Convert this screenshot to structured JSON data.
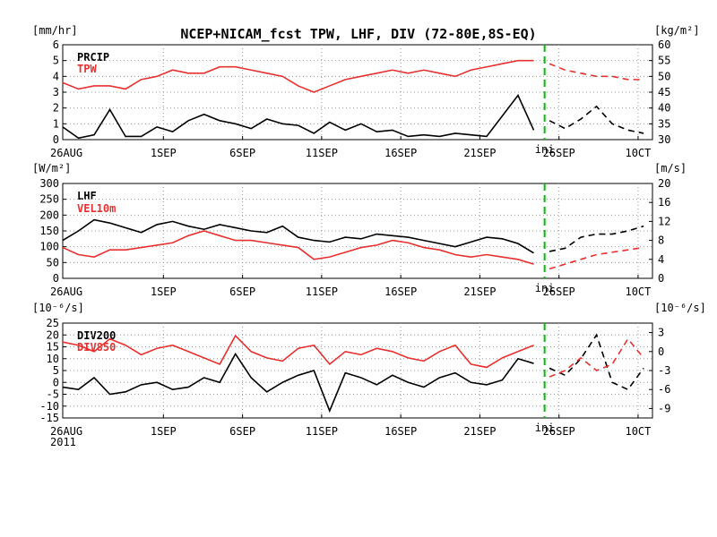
{
  "title": "NCEP+NICAM_fcst TPW, LHF, DIV (72-80E,8S-EQ)",
  "colors": {
    "black": "#000000",
    "red": "#e83030",
    "init_line": "#00c000",
    "grid": "#999999"
  },
  "x_tick_labels": [
    "26AUG",
    "1SEP",
    "6SEP",
    "11SEP",
    "16SEP",
    "21SEP",
    "26SEP",
    "10CT"
  ],
  "x_year_label": "2011",
  "init_label": "ini",
  "chart_data": [
    {
      "id": "panel-1",
      "type": "line",
      "left_unit": "[mm/hr]",
      "right_unit": "[kg/m²]",
      "y_left_ticks": [
        "0",
        "1",
        "2",
        "3",
        "4",
        "5",
        "6"
      ],
      "y_right_ticks": [
        "30",
        "35",
        "40",
        "45",
        "50",
        "55",
        "60"
      ],
      "ylim_left": [
        0,
        6
      ],
      "ylim_right": [
        30,
        60
      ],
      "x": [
        "26AUG",
        "27AUG",
        "28AUG",
        "29AUG",
        "30AUG",
        "31AUG",
        "1SEP",
        "2SEP",
        "3SEP",
        "4SEP",
        "5SEP",
        "6SEP",
        "7SEP",
        "8SEP",
        "9SEP",
        "10SEP",
        "11SEP",
        "12SEP",
        "13SEP",
        "14SEP",
        "15SEP",
        "16SEP",
        "17SEP",
        "18SEP",
        "19SEP",
        "20SEP",
        "21SEP",
        "22SEP",
        "23SEP",
        "24SEP",
        "25SEP",
        "26SEP",
        "27SEP",
        "28SEP",
        "29SEP",
        "30SEP",
        "1OCT",
        "2OCT"
      ],
      "series": [
        {
          "name": "PRCIP",
          "axis": "left",
          "color": "#000000",
          "values": [
            0.8,
            0.1,
            0.3,
            1.9,
            0.2,
            0.2,
            0.8,
            0.5,
            1.2,
            1.6,
            1.2,
            1.0,
            0.7,
            1.3,
            1.0,
            0.9,
            0.4,
            1.1,
            0.6,
            1.0,
            0.5,
            0.6,
            0.2,
            0.3,
            0.2,
            0.4,
            0.3,
            0.2,
            1.5,
            2.8,
            0.6,
            1.2,
            0.7,
            1.3,
            2.1,
            1.0,
            0.6,
            0.4
          ]
        },
        {
          "name": "TPW",
          "axis": "right",
          "color": "#e83030",
          "values": [
            48,
            46,
            47,
            47,
            46,
            49,
            50,
            52,
            51,
            51,
            53,
            53,
            52,
            51,
            50,
            47,
            45,
            47,
            49,
            50,
            51,
            52,
            51,
            52,
            51,
            50,
            52,
            53,
            54,
            55,
            55,
            54,
            52,
            51,
            50,
            50,
            49,
            49
          ]
        }
      ]
    },
    {
      "id": "panel-2",
      "type": "line",
      "left_unit": "[W/m²]",
      "right_unit": "[m/s]",
      "y_left_ticks": [
        "0",
        "50",
        "100",
        "150",
        "200",
        "250",
        "300"
      ],
      "y_right_ticks": [
        "0",
        "4",
        "8",
        "12",
        "16",
        "20"
      ],
      "ylim_left": [
        0,
        300
      ],
      "ylim_right": [
        0,
        20
      ],
      "x": [
        "26AUG",
        "27AUG",
        "28AUG",
        "29AUG",
        "30AUG",
        "31AUG",
        "1SEP",
        "2SEP",
        "3SEP",
        "4SEP",
        "5SEP",
        "6SEP",
        "7SEP",
        "8SEP",
        "9SEP",
        "10SEP",
        "11SEP",
        "12SEP",
        "13SEP",
        "14SEP",
        "15SEP",
        "16SEP",
        "17SEP",
        "18SEP",
        "19SEP",
        "20SEP",
        "21SEP",
        "22SEP",
        "23SEP",
        "24SEP",
        "25SEP",
        "26SEP",
        "27SEP",
        "28SEP",
        "29SEP",
        "30SEP",
        "1OCT",
        "2OCT"
      ],
      "series": [
        {
          "name": "LHF",
          "axis": "left",
          "color": "#000000",
          "values": [
            120,
            150,
            185,
            175,
            160,
            145,
            170,
            180,
            165,
            155,
            170,
            160,
            150,
            145,
            165,
            130,
            120,
            115,
            130,
            125,
            140,
            135,
            130,
            120,
            110,
            100,
            115,
            130,
            125,
            110,
            80,
            85,
            95,
            130,
            140,
            140,
            150,
            165
          ]
        },
        {
          "name": "VEL10m",
          "axis": "right",
          "color": "#e83030",
          "values": [
            6.5,
            5.0,
            4.5,
            6.0,
            6.0,
            6.5,
            7.0,
            7.5,
            9.0,
            10.0,
            9.0,
            8.0,
            8.0,
            7.5,
            7.0,
            6.5,
            4.0,
            4.5,
            5.5,
            6.5,
            7.0,
            8.0,
            7.5,
            6.5,
            6.0,
            5.0,
            4.5,
            5.0,
            4.5,
            4.0,
            3.0,
            2.0,
            3.0,
            4.0,
            5.0,
            5.5,
            6.0,
            6.5
          ]
        }
      ]
    },
    {
      "id": "panel-3",
      "type": "line",
      "left_unit": "[10⁻⁶/s]",
      "right_unit": "[10⁻⁶/s]",
      "y_left_ticks": [
        "-15",
        "-10",
        "-5",
        "0",
        "5",
        "10",
        "15",
        "20",
        "25"
      ],
      "y_right_ticks": [
        "-9",
        "-6",
        "-3",
        "0",
        "3"
      ],
      "ylim_left": [
        -15,
        25
      ],
      "ylim_right": [
        -10.5,
        4.5
      ],
      "x": [
        "26AUG",
        "27AUG",
        "28AUG",
        "29AUG",
        "30AUG",
        "31AUG",
        "1SEP",
        "2SEP",
        "3SEP",
        "4SEP",
        "5SEP",
        "6SEP",
        "7SEP",
        "8SEP",
        "9SEP",
        "10SEP",
        "11SEP",
        "12SEP",
        "13SEP",
        "14SEP",
        "15SEP",
        "16SEP",
        "17SEP",
        "18SEP",
        "19SEP",
        "20SEP",
        "21SEP",
        "22SEP",
        "23SEP",
        "24SEP",
        "25SEP",
        "26SEP",
        "27SEP",
        "28SEP",
        "29SEP",
        "30SEP",
        "1OCT",
        "2OCT"
      ],
      "series": [
        {
          "name": "DIV200",
          "axis": "left",
          "color": "#000000",
          "values": [
            -2,
            -3,
            2,
            -5,
            -4,
            -1,
            0,
            -3,
            -2,
            2,
            0,
            12,
            2,
            -4,
            0,
            3,
            5,
            -12,
            4,
            2,
            -1,
            3,
            0,
            -2,
            2,
            4,
            0,
            -1,
            1,
            10,
            8,
            6,
            3,
            10,
            20,
            0,
            -3,
            6
          ]
        },
        {
          "name": "DIV850",
          "axis": "right",
          "color": "#e83030",
          "values": [
            1.5,
            1.0,
            0.0,
            2.0,
            1.0,
            -0.5,
            0.5,
            1.0,
            0.0,
            -1.0,
            -2.0,
            2.5,
            0.0,
            -1.0,
            -1.5,
            0.5,
            1.0,
            -2.0,
            0.0,
            -0.5,
            0.5,
            0.0,
            -1.0,
            -1.5,
            0.0,
            1.0,
            -2.0,
            -2.5,
            -1.0,
            0.0,
            1.0,
            -4.0,
            -3.0,
            -1.0,
            -3.0,
            -2.0,
            2.0,
            -1.0
          ]
        }
      ]
    }
  ]
}
